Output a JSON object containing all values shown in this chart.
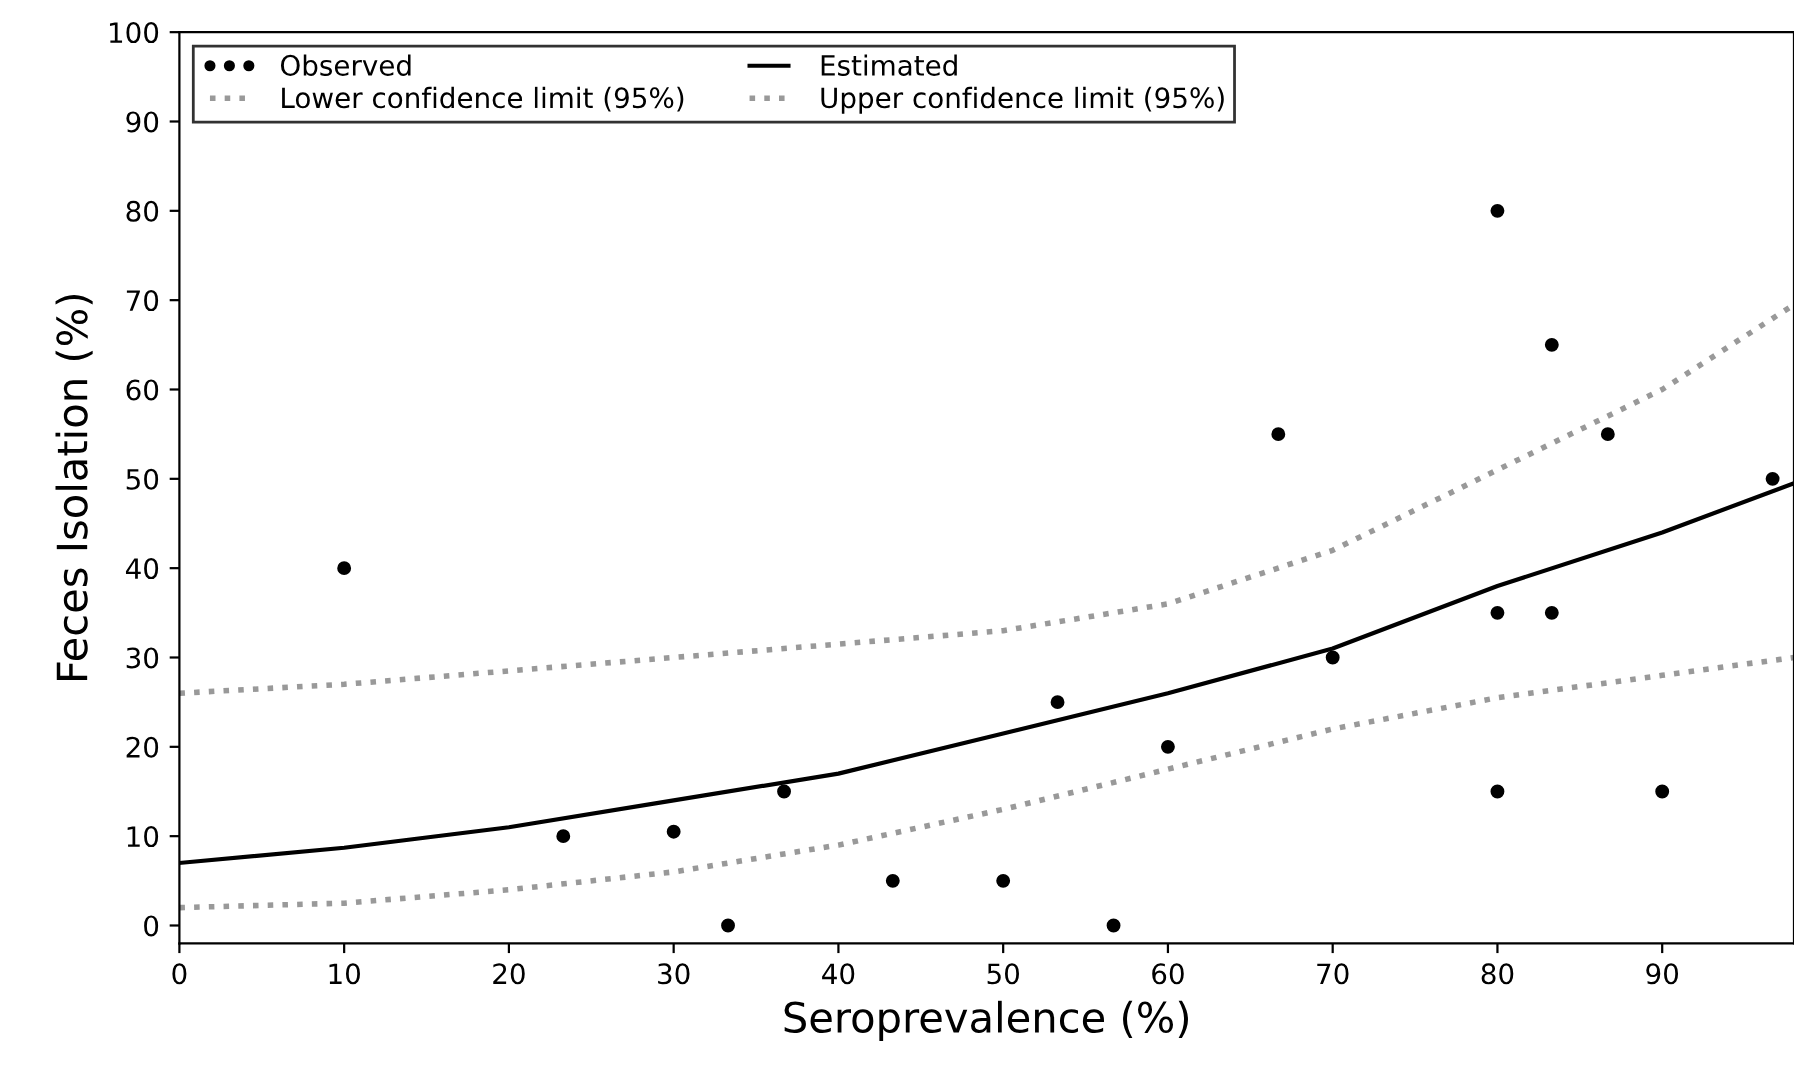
{
  "chart_data": {
    "type": "line",
    "xlabel": "Seroprevalence (%)",
    "ylabel": "Feces Isolation (%)",
    "xlim": [
      0,
      98
    ],
    "ylim": [
      -2,
      100
    ],
    "xticks": [
      0,
      10,
      20,
      30,
      40,
      50,
      60,
      70,
      80,
      90
    ],
    "yticks": [
      0,
      10,
      20,
      30,
      40,
      50,
      60,
      70,
      80,
      90,
      100
    ],
    "grid": false,
    "legend": "top left",
    "series": [
      {
        "name": "Observed",
        "type": "scatter",
        "color": "#000000",
        "marker": "circle",
        "x": [
          10,
          23.3,
          30,
          33.3,
          36.7,
          43.3,
          50,
          53.3,
          56.7,
          60,
          66.7,
          70,
          80,
          80,
          80,
          83.3,
          83.3,
          86.7,
          90,
          96.7
        ],
        "values": [
          40,
          10,
          10.5,
          0,
          15,
          5,
          5,
          25,
          0,
          20,
          55,
          30,
          80,
          35,
          15,
          65,
          35,
          55,
          15,
          50
        ]
      },
      {
        "name": "Estimated",
        "color": "#000000",
        "line_style": "solid",
        "x": [
          0,
          10,
          20,
          30,
          40,
          50,
          60,
          70,
          80,
          90,
          98
        ],
        "values": [
          7,
          8.7,
          11,
          14,
          17,
          21.5,
          26,
          31,
          38,
          44,
          49.5
        ]
      },
      {
        "name": "Lower confidence limit (95%)",
        "color": "#999999",
        "line_style": "dotted",
        "x": [
          0,
          10,
          20,
          30,
          40,
          50,
          60,
          70,
          80,
          90,
          98
        ],
        "values": [
          2,
          2.5,
          4,
          6,
          9,
          13,
          17.5,
          22,
          25.5,
          28,
          30
        ]
      },
      {
        "name": "Upper confidence limit (95%)",
        "color": "#999999",
        "line_style": "dotted",
        "x": [
          0,
          10,
          20,
          30,
          40,
          50,
          60,
          70,
          80,
          90,
          98
        ],
        "values": [
          26,
          27,
          28.5,
          30,
          31.5,
          33,
          36,
          42,
          51,
          60,
          69.5
        ]
      }
    ]
  }
}
